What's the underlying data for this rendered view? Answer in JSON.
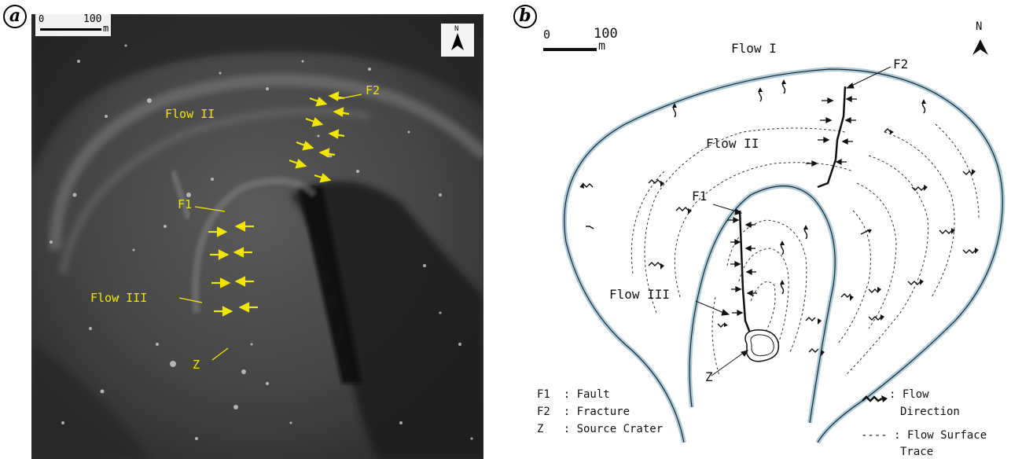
{
  "panels": {
    "a": {
      "letter": "a",
      "scale": {
        "zero": "0",
        "value": "100",
        "unit": "m"
      },
      "north": "N",
      "labels": {
        "flow2": "Flow II",
        "flow3": "Flow III",
        "f1": "F1",
        "f2": "F2",
        "z": "Z"
      }
    },
    "b": {
      "letter": "b",
      "scale": {
        "zero": "0",
        "value": "100",
        "unit": "m"
      },
      "north": "N",
      "labels": {
        "flow1": "Flow I",
        "flow2": "Flow II",
        "flow3": "Flow III",
        "f1": "F1",
        "f2": "F2",
        "z": "Z"
      },
      "legend": {
        "f1": "F1  : Fault",
        "f2": "F2  : Fracture",
        "z": "Z   : Source Crater",
        "flow_dir_1": ": Flow",
        "flow_dir_2": "Direction",
        "trace_1": "---- : Flow Surface",
        "trace_2": "Trace"
      }
    }
  },
  "colors": {
    "annotation": "#f2e600",
    "flow_outline": "#a9cbdc",
    "ink": "#111111"
  }
}
